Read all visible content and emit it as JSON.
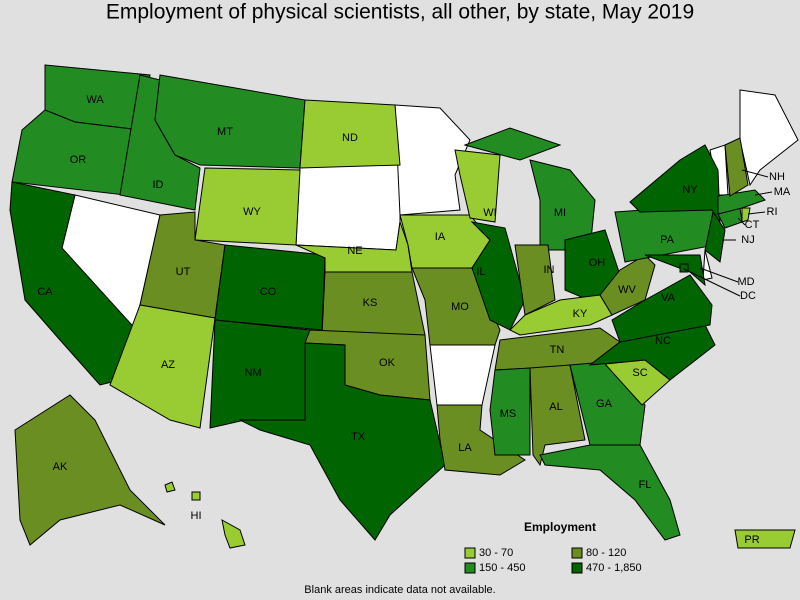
{
  "title": "Employment of physical scientists, all other, by state, May 2019",
  "legend": {
    "title": "Employment",
    "items": [
      {
        "label": "30 - 70",
        "color": "#99cc33"
      },
      {
        "label": "80 - 120",
        "color": "#6b8e23"
      },
      {
        "label": "150 - 450",
        "color": "#228b22"
      },
      {
        "label": "470 - 1,850",
        "color": "#006400"
      }
    ]
  },
  "states": [
    {
      "label": "WA",
      "bin": 2
    },
    {
      "label": "OR",
      "bin": 2
    },
    {
      "label": "CA",
      "bin": 3
    },
    {
      "label": "ID",
      "bin": 2
    },
    {
      "label": "MT",
      "bin": 2
    },
    {
      "label": "WY",
      "bin": 0
    },
    {
      "label": "UT",
      "bin": 1
    },
    {
      "label": "AZ",
      "bin": 0
    },
    {
      "label": "CO",
      "bin": 3
    },
    {
      "label": "NM",
      "bin": 3
    },
    {
      "label": "ND",
      "bin": 0
    },
    {
      "label": "NE",
      "bin": 0
    },
    {
      "label": "KS",
      "bin": 1
    },
    {
      "label": "OK",
      "bin": 1
    },
    {
      "label": "TX",
      "bin": 3
    },
    {
      "label": "IA",
      "bin": 0
    },
    {
      "label": "MO",
      "bin": 1
    },
    {
      "label": "LA",
      "bin": 1
    },
    {
      "label": "WI",
      "bin": 0
    },
    {
      "label": "IL",
      "bin": 3
    },
    {
      "label": "MI",
      "bin": 2
    },
    {
      "label": "IN",
      "bin": 1
    },
    {
      "label": "OH",
      "bin": 3
    },
    {
      "label": "KY",
      "bin": 0
    },
    {
      "label": "TN",
      "bin": 1
    },
    {
      "label": "MS",
      "bin": 2
    },
    {
      "label": "AL",
      "bin": 1
    },
    {
      "label": "GA",
      "bin": 2
    },
    {
      "label": "FL",
      "bin": 2
    },
    {
      "label": "SC",
      "bin": 0
    },
    {
      "label": "NC",
      "bin": 3
    },
    {
      "label": "VA",
      "bin": 3
    },
    {
      "label": "WV",
      "bin": 1
    },
    {
      "label": "PA",
      "bin": 2
    },
    {
      "label": "NY",
      "bin": 3
    },
    {
      "label": "NJ",
      "bin": 3
    },
    {
      "label": "MD",
      "bin": 3
    },
    {
      "label": "DC",
      "bin": 3
    },
    {
      "label": "CT",
      "bin": 2
    },
    {
      "label": "RI",
      "bin": 0
    },
    {
      "label": "MA",
      "bin": 2
    },
    {
      "label": "NH",
      "bin": 1
    },
    {
      "label": "AK",
      "bin": 1
    },
    {
      "label": "HI",
      "bin": 0
    },
    {
      "label": "PR",
      "bin": 0
    }
  ],
  "footnote": "Blank areas indicate data not available."
}
